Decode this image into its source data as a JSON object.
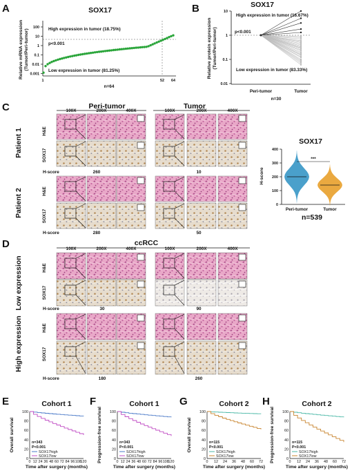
{
  "panels": {
    "A": {
      "letter": "A",
      "title": "SOX17",
      "ylabel_1": "Relative mRNA expression",
      "ylabel_2": "(Tumor/Peri-tumor)",
      "high_text": "High expression in tumor (18.75%)",
      "low_text": "Low expression in tumor (81.25%)",
      "pvalue": "p<0.001",
      "n": "n=64",
      "yticks": [
        "100",
        "10",
        "1",
        "0.1",
        "0.01",
        "0.001"
      ],
      "xticks": [
        "1",
        "52",
        "64"
      ]
    },
    "B": {
      "letter": "B",
      "title": "SOX17",
      "ylabel_1": "Relative protein expression",
      "ylabel_2": "(Tumor/Peri-tumor)",
      "high_text": "High expression in tumor (16.67%)",
      "low_text": "Low expression in tumor (83.33%)",
      "pvalue": "p<0.001",
      "n": "n=30",
      "yticks": [
        "10",
        "1",
        "0.1",
        "0.01"
      ],
      "xticks": [
        "Peri-tumor",
        "Tumor"
      ]
    },
    "C": {
      "letter": "C",
      "header_left": "Peri-tumor",
      "header_right": "Tumor",
      "mags": [
        "100X",
        "200X",
        "400X",
        "100X",
        "200X",
        "400X"
      ],
      "rows": [
        {
          "patient": "Patient 1",
          "stains": [
            "H&E",
            "SOX17"
          ],
          "hscore_label": "H-score",
          "hscore_left": "260",
          "hscore_right": "10"
        },
        {
          "patient": "Patient 2",
          "stains": [
            "H&E",
            "SOX17"
          ],
          "hscore_label": "H-score",
          "hscore_left": "280",
          "hscore_right": "50"
        }
      ],
      "dot_title": "SOX17",
      "dot_ylabel": "H-score",
      "dot_yticks": [
        "400",
        "300",
        "200",
        "100",
        "0"
      ],
      "dot_xticks": [
        "Peri-tumor",
        "Tumor"
      ],
      "dot_sig": "***",
      "dot_n": "n=539"
    },
    "D": {
      "letter": "D",
      "header": "ccRCC",
      "mags": [
        "100X",
        "200X",
        "400X",
        "100X",
        "200X",
        "400X"
      ],
      "groups": [
        {
          "label": "Low expression",
          "stains": [
            "H&E",
            "SOX17"
          ],
          "hscore_label": "H-score",
          "hscore_left": "30",
          "hscore_right": "90"
        },
        {
          "label": "High expression",
          "stains": [
            "H&E",
            "SOX17"
          ],
          "hscore_label": "H-score",
          "hscore_left": "180",
          "hscore_right": "260"
        }
      ]
    },
    "survival": [
      {
        "letter": "E",
        "title": "Cohort 1",
        "ylabel": "Overall survival",
        "n": "n=343",
        "p": "P<0.001",
        "legend_high": "SOX17high",
        "legend_low": "SOX17low",
        "xlabel": "Time after surgery (months)",
        "xticks": [
          "0",
          "12",
          "24",
          "36",
          "48",
          "60",
          "72",
          "84",
          "96",
          "108",
          "120"
        ],
        "yticks": [
          "100",
          "80",
          "60",
          "40",
          "20",
          "0"
        ]
      },
      {
        "letter": "F",
        "title": "Cohort 1",
        "ylabel": "Progression-free survival",
        "n": "n=343",
        "p": "P<0.001",
        "legend_high": "SOX17high",
        "legend_low": "SOX17low",
        "xlabel": "Time after surgery (months)",
        "xticks": [
          "0",
          "12",
          "24",
          "36",
          "48",
          "60",
          "72",
          "84",
          "96",
          "108",
          "120"
        ],
        "yticks": [
          "100",
          "80",
          "60",
          "40",
          "20",
          "0"
        ]
      },
      {
        "letter": "G",
        "title": "Cohort 2",
        "ylabel": "Overall survival",
        "n": "n=115",
        "p": "P<0.001",
        "legend_high": "SOX17high",
        "legend_low": "SOX17low",
        "xlabel": "Time after surgery (months)",
        "xticks": [
          "0",
          "12",
          "24",
          "36",
          "48",
          "60",
          "72"
        ],
        "yticks": [
          "100",
          "80",
          "60",
          "40",
          "20",
          "0"
        ]
      },
      {
        "letter": "H",
        "title": "Cohort 2",
        "ylabel": "Progression-free survival",
        "n": "n=115",
        "p": "P<0.001",
        "legend_high": "SOX17high",
        "legend_low": "SOX17low",
        "xlabel": "Time after surgery (months)",
        "xticks": [
          "0",
          "12",
          "24",
          "36",
          "48",
          "60",
          "72"
        ],
        "yticks": [
          "100",
          "80",
          "60",
          "40",
          "20",
          "0"
        ]
      }
    ]
  },
  "colors": {
    "dots_green": "#2aa53a",
    "he_pink": "#e6a3c4",
    "ihc_tan": "#c9ad86",
    "violin_blue": "#2a8fc2",
    "violin_orange": "#e69a1e",
    "km_c1_high": "#4a79c8",
    "km_c1_low": "#c04cc4",
    "km_c2_high": "#48b7a6",
    "km_c2_low": "#c8842e"
  }
}
